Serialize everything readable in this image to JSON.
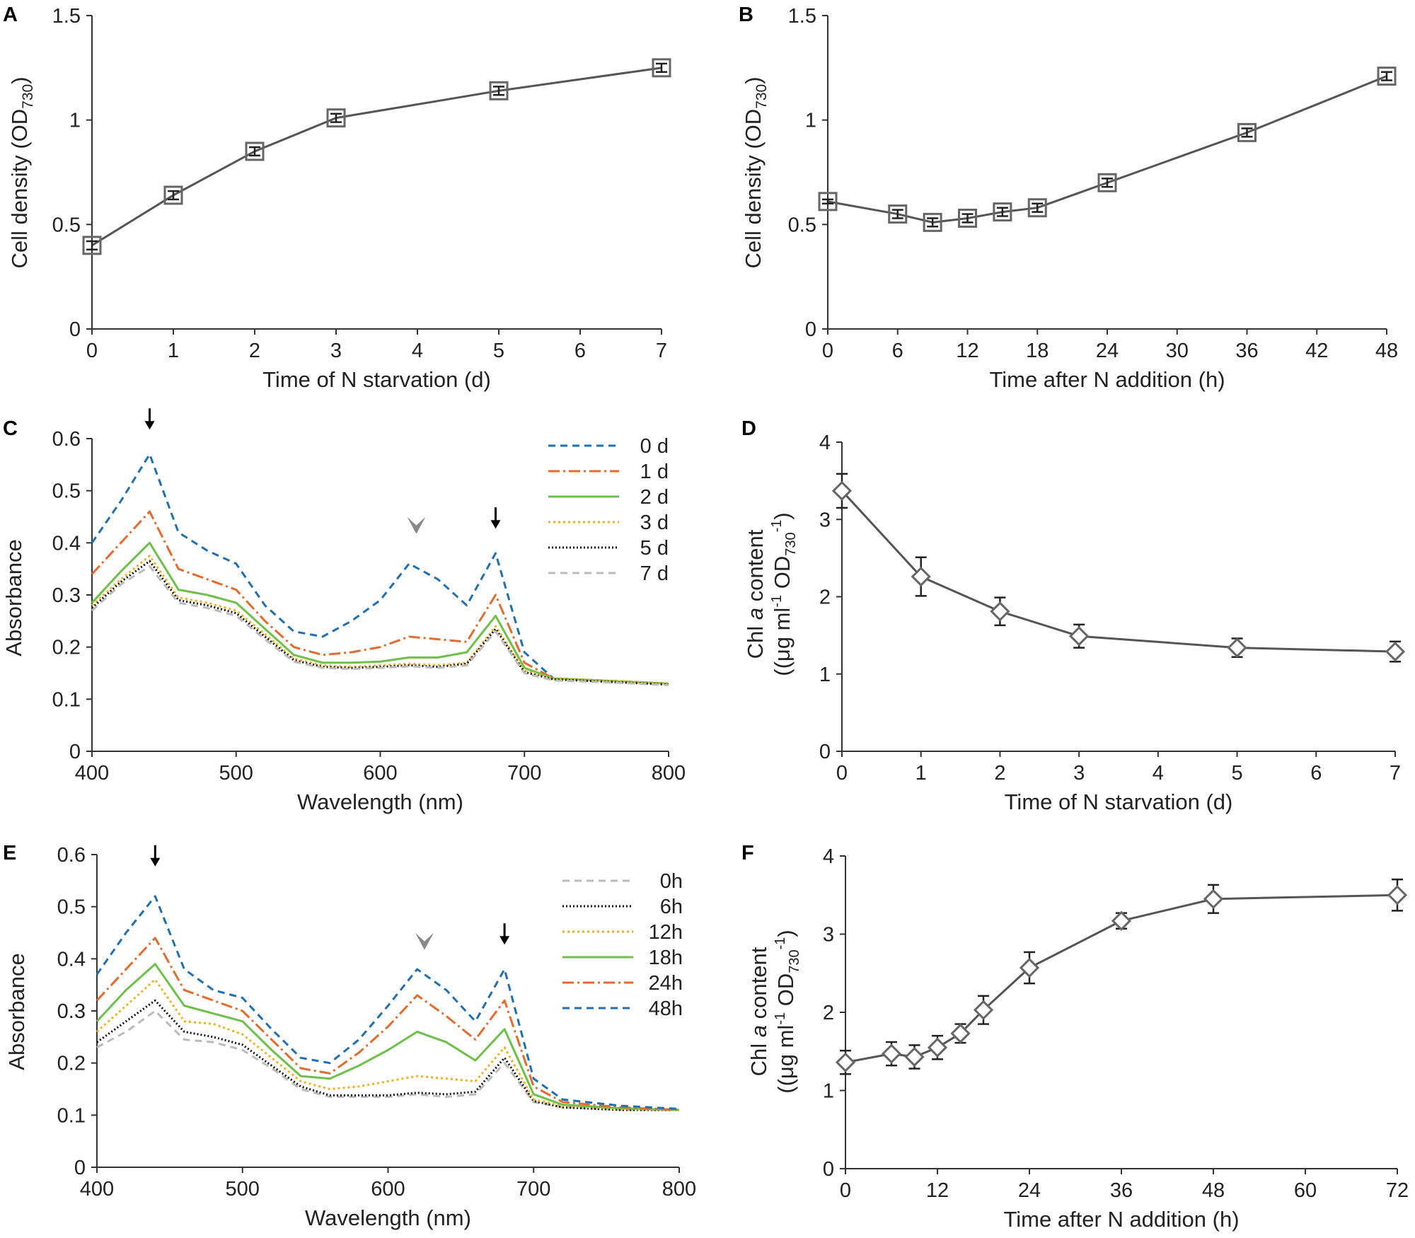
{
  "chart_data": [
    {
      "panel": "A",
      "type": "line",
      "xlabel": "Time of N starvation (d)",
      "ylabel_main": "Cell density (OD",
      "ylabel_sub": "730",
      "ylabel_end": ")",
      "xlim": [
        0,
        7
      ],
      "ylim": [
        0,
        1.5
      ],
      "xticks": [
        0,
        1,
        2,
        3,
        4,
        5,
        6,
        7
      ],
      "yticks": [
        0,
        0.5,
        1,
        1.5
      ],
      "ytick_labels": [
        "0",
        "0.5",
        "1",
        "1.5"
      ],
      "series": [
        {
          "name": "cell density",
          "marker": "square",
          "color": "#555555",
          "x": [
            0,
            1,
            2,
            3,
            5,
            7
          ],
          "y": [
            0.4,
            0.64,
            0.85,
            1.01,
            1.14,
            1.25
          ],
          "err": [
            0.02,
            0.02,
            0.02,
            0.02,
            0.02,
            0.02
          ]
        }
      ]
    },
    {
      "panel": "B",
      "type": "line",
      "xlabel": "Time after N addition (h)",
      "ylabel_main": "Cell density (OD",
      "ylabel_sub": "730",
      "ylabel_end": ")",
      "xlim": [
        0,
        48
      ],
      "ylim": [
        0,
        1.5
      ],
      "xticks": [
        0,
        6,
        12,
        18,
        24,
        30,
        36,
        42,
        48
      ],
      "yticks": [
        0,
        0.5,
        1,
        1.5
      ],
      "ytick_labels": [
        "0",
        "0.5",
        "1",
        "1.5"
      ],
      "series": [
        {
          "name": "cell density",
          "marker": "square",
          "color": "#555555",
          "x": [
            0,
            6,
            9,
            12,
            15,
            18,
            24,
            36,
            48
          ],
          "y": [
            0.61,
            0.55,
            0.51,
            0.53,
            0.56,
            0.58,
            0.7,
            0.94,
            1.21
          ],
          "err": [
            0.01,
            0.02,
            0.02,
            0.02,
            0.02,
            0.02,
            0.02,
            0.02,
            0.02
          ]
        }
      ]
    },
    {
      "panel": "C",
      "type": "line",
      "xlabel": "Wavelength (nm)",
      "ylabel": "Absorbance",
      "xlim": [
        400,
        800
      ],
      "ylim": [
        0,
        0.6
      ],
      "xticks": [
        400,
        500,
        600,
        700,
        800
      ],
      "yticks": [
        0,
        0.1,
        0.2,
        0.3,
        0.4,
        0.5,
        0.6
      ],
      "ytick_labels": [
        "0",
        "0.1",
        "0.2",
        "0.3",
        "0.4",
        "0.5",
        "0.6"
      ],
      "annotations": [
        {
          "type": "arrow",
          "x": 440,
          "y": 0.62
        },
        {
          "type": "arrow",
          "x": 680,
          "y": 0.43
        },
        {
          "type": "arrowhead",
          "x": 625,
          "y": 0.42
        }
      ],
      "x": [
        400,
        420,
        440,
        460,
        480,
        500,
        520,
        540,
        560,
        580,
        600,
        620,
        640,
        660,
        680,
        700,
        720,
        760,
        800
      ],
      "series": [
        {
          "name": "0 d",
          "color": "#1f6fb4",
          "dash": "10,7",
          "values": [
            0.4,
            0.48,
            0.57,
            0.42,
            0.385,
            0.36,
            0.28,
            0.23,
            0.22,
            0.25,
            0.29,
            0.36,
            0.33,
            0.28,
            0.38,
            0.19,
            0.14,
            0.135,
            0.13
          ]
        },
        {
          "name": "1 d",
          "color": "#e46b2e",
          "dash": "16,5,3,5",
          "values": [
            0.34,
            0.4,
            0.46,
            0.35,
            0.33,
            0.31,
            0.25,
            0.2,
            0.185,
            0.19,
            0.2,
            0.22,
            0.215,
            0.21,
            0.3,
            0.17,
            0.14,
            0.135,
            0.13
          ]
        },
        {
          "name": "2 d",
          "color": "#6dc049",
          "dash": "",
          "values": [
            0.285,
            0.345,
            0.4,
            0.31,
            0.3,
            0.285,
            0.235,
            0.185,
            0.17,
            0.17,
            0.172,
            0.18,
            0.18,
            0.19,
            0.26,
            0.16,
            0.14,
            0.135,
            0.13
          ]
        },
        {
          "name": "3 d",
          "color": "#f2b01e",
          "dash": "3,4",
          "values": [
            0.28,
            0.33,
            0.375,
            0.295,
            0.285,
            0.27,
            0.225,
            0.178,
            0.165,
            0.162,
            0.165,
            0.168,
            0.165,
            0.17,
            0.24,
            0.155,
            0.14,
            0.135,
            0.13
          ]
        },
        {
          "name": "5 d",
          "color": "#111111",
          "dash": "2,3",
          "values": [
            0.275,
            0.325,
            0.365,
            0.29,
            0.28,
            0.265,
            0.22,
            0.175,
            0.162,
            0.16,
            0.162,
            0.165,
            0.162,
            0.168,
            0.235,
            0.152,
            0.138,
            0.133,
            0.128
          ]
        },
        {
          "name": "7 d",
          "color": "#bbbbbb",
          "dash": "10,7",
          "values": [
            0.27,
            0.32,
            0.355,
            0.285,
            0.275,
            0.26,
            0.215,
            0.172,
            0.16,
            0.158,
            0.16,
            0.163,
            0.16,
            0.165,
            0.23,
            0.15,
            0.136,
            0.132,
            0.127
          ]
        }
      ]
    },
    {
      "panel": "D",
      "type": "line",
      "xlabel": "Time of N starvation (d)",
      "ylabel_line1_a": "Chl ",
      "ylabel_line1_b": "a",
      "ylabel_line1_c": " content",
      "ylabel_line2": "((μg ml",
      "ylabel_sup1": "-1",
      "ylabel_od": " OD",
      "ylabel_sub": "730",
      "ylabel_sup2": "-1",
      "ylabel_end": ")",
      "xlim": [
        0,
        7
      ],
      "ylim": [
        0,
        4
      ],
      "xticks": [
        0,
        1,
        2,
        3,
        4,
        5,
        6,
        7
      ],
      "yticks": [
        0,
        1,
        2,
        3,
        4
      ],
      "ytick_labels": [
        "0",
        "1",
        "2",
        "3",
        "4"
      ],
      "series": [
        {
          "name": "Chl a",
          "marker": "diamond",
          "color": "#555555",
          "x": [
            0,
            1,
            2,
            3,
            5,
            7
          ],
          "y": [
            3.37,
            2.26,
            1.81,
            1.49,
            1.34,
            1.29
          ],
          "err": [
            0.22,
            0.25,
            0.18,
            0.15,
            0.12,
            0.13
          ]
        }
      ]
    },
    {
      "panel": "E",
      "type": "line",
      "xlabel": "Wavelength (nm)",
      "ylabel": "Absorbance",
      "xlim": [
        400,
        800
      ],
      "ylim": [
        0,
        0.6
      ],
      "xticks": [
        400,
        500,
        600,
        700,
        800
      ],
      "yticks": [
        0,
        0.1,
        0.2,
        0.3,
        0.4,
        0.5,
        0.6
      ],
      "ytick_labels": [
        "0",
        "0.1",
        "0.2",
        "0.3",
        "0.4",
        "0.5",
        "0.6"
      ],
      "annotations": [
        {
          "type": "arrow",
          "x": 440,
          "y": 0.58
        },
        {
          "type": "arrow",
          "x": 680,
          "y": 0.43
        },
        {
          "type": "arrowhead",
          "x": 625,
          "y": 0.42
        }
      ],
      "x": [
        400,
        420,
        440,
        460,
        480,
        500,
        520,
        540,
        560,
        580,
        600,
        620,
        640,
        660,
        680,
        700,
        720,
        760,
        800
      ],
      "series": [
        {
          "name": "0h",
          "color": "#bbbbbb",
          "dash": "10,7",
          "values": [
            0.23,
            0.26,
            0.3,
            0.245,
            0.24,
            0.225,
            0.19,
            0.15,
            0.135,
            0.135,
            0.135,
            0.14,
            0.135,
            0.14,
            0.2,
            0.125,
            0.115,
            0.11,
            0.11
          ]
        },
        {
          "name": "6h",
          "color": "#111111",
          "dash": "2,3",
          "values": [
            0.24,
            0.28,
            0.32,
            0.26,
            0.25,
            0.235,
            0.195,
            0.155,
            0.138,
            0.138,
            0.138,
            0.143,
            0.14,
            0.145,
            0.21,
            0.127,
            0.115,
            0.11,
            0.11
          ]
        },
        {
          "name": "12h",
          "color": "#f2b01e",
          "dash": "3,4",
          "values": [
            0.26,
            0.31,
            0.36,
            0.28,
            0.275,
            0.255,
            0.21,
            0.165,
            0.15,
            0.155,
            0.165,
            0.175,
            0.17,
            0.165,
            0.23,
            0.13,
            0.118,
            0.112,
            0.11
          ]
        },
        {
          "name": "18h",
          "color": "#6dc049",
          "dash": "",
          "values": [
            0.28,
            0.34,
            0.39,
            0.31,
            0.295,
            0.28,
            0.225,
            0.175,
            0.17,
            0.195,
            0.225,
            0.26,
            0.24,
            0.205,
            0.265,
            0.14,
            0.12,
            0.113,
            0.11
          ]
        },
        {
          "name": "24h",
          "color": "#e46b2e",
          "dash": "16,5,3,5",
          "values": [
            0.32,
            0.38,
            0.44,
            0.34,
            0.32,
            0.3,
            0.245,
            0.19,
            0.18,
            0.22,
            0.27,
            0.33,
            0.29,
            0.245,
            0.32,
            0.155,
            0.125,
            0.115,
            0.11
          ]
        },
        {
          "name": "48h",
          "color": "#1f6fb4",
          "dash": "10,7",
          "values": [
            0.37,
            0.45,
            0.52,
            0.38,
            0.34,
            0.325,
            0.265,
            0.21,
            0.2,
            0.245,
            0.31,
            0.38,
            0.34,
            0.28,
            0.38,
            0.17,
            0.13,
            0.118,
            0.112
          ]
        }
      ]
    },
    {
      "panel": "F",
      "type": "line",
      "xlabel": "Time after N addition (h)",
      "ylabel_line1_a": "Chl ",
      "ylabel_line1_b": "a",
      "ylabel_line1_c": " content",
      "ylabel_line2": "((μg ml",
      "ylabel_sup1": "-1",
      "ylabel_od": " OD",
      "ylabel_sub": "730",
      "ylabel_sup2": "-1",
      "ylabel_end": ")",
      "xlim": [
        0,
        72
      ],
      "ylim": [
        0,
        4
      ],
      "xticks": [
        0,
        12,
        24,
        36,
        48,
        60,
        72
      ],
      "yticks": [
        0,
        1,
        2,
        3,
        4
      ],
      "ytick_labels": [
        "0",
        "1",
        "2",
        "3",
        "4"
      ],
      "series": [
        {
          "name": "Chl a",
          "marker": "diamond",
          "color": "#555555",
          "x": [
            0,
            6,
            9,
            12,
            15,
            18,
            24,
            36,
            48,
            72
          ],
          "y": [
            1.36,
            1.47,
            1.43,
            1.55,
            1.73,
            2.03,
            2.57,
            3.17,
            3.45,
            3.5
          ],
          "err": [
            0.15,
            0.15,
            0.15,
            0.15,
            0.12,
            0.18,
            0.2,
            0.1,
            0.18,
            0.2
          ]
        }
      ]
    }
  ]
}
